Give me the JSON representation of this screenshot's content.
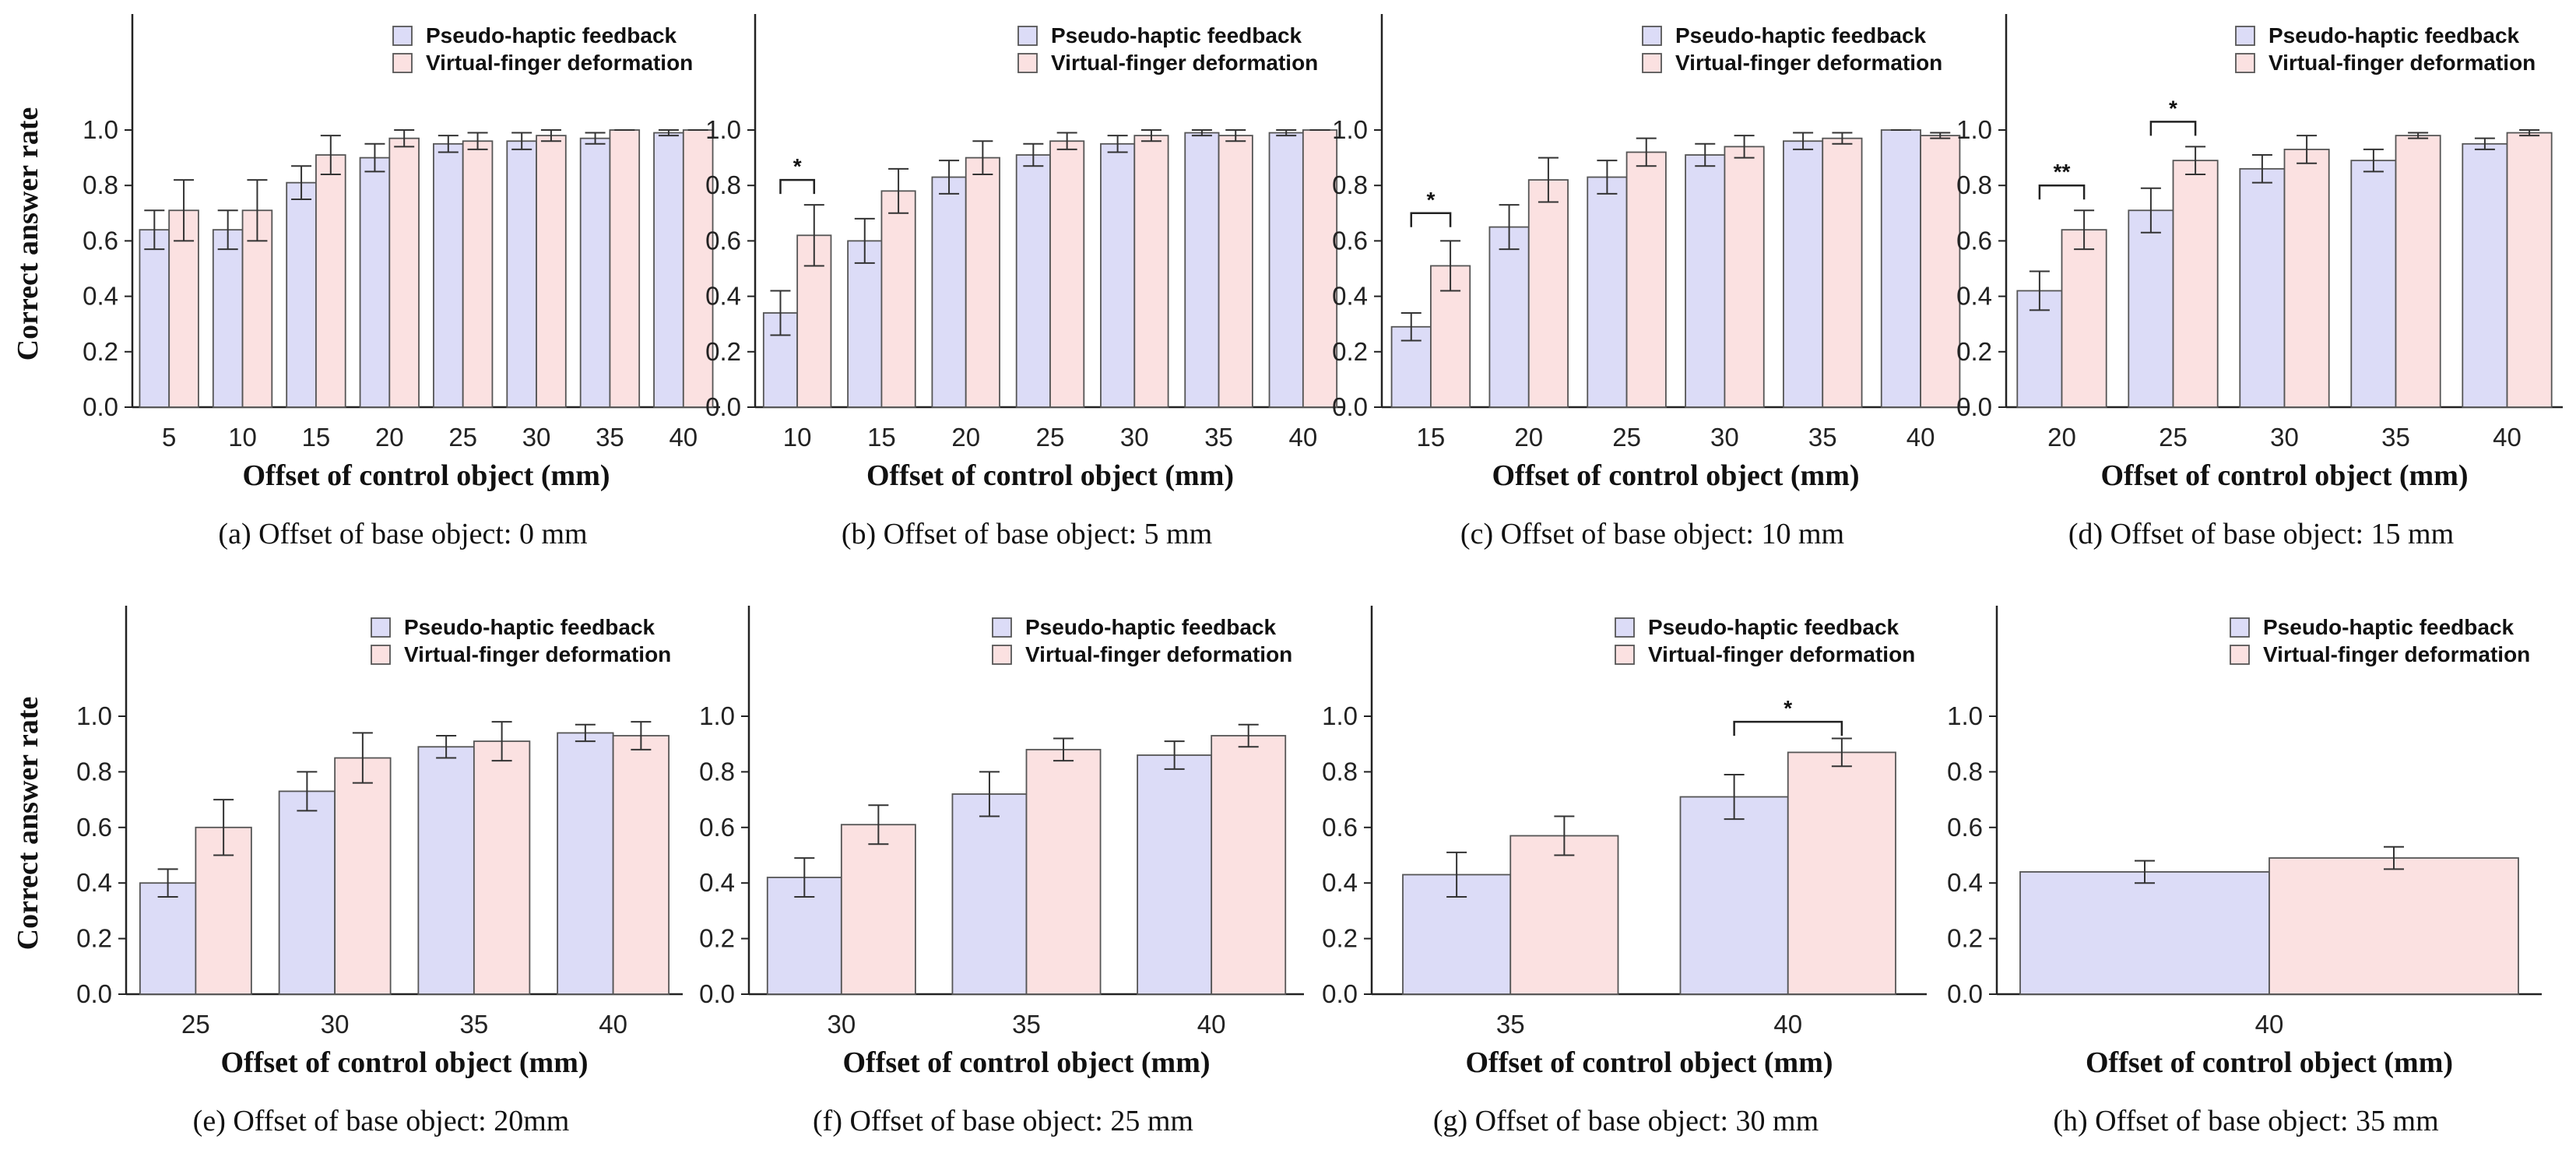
{
  "colors": {
    "pseudo_haptic": "#dcdcf7",
    "virtual_finger": "#fbe1e1",
    "bar_edge": "#555555",
    "axis": "#222222"
  },
  "legend": {
    "series_1": "Pseudo-haptic feedback",
    "series_2": "Virtual-finger deformation"
  },
  "ylabel": "Correct answer rate",
  "xlabel": "Offset of control object (mm)",
  "y_ticks": [
    "0.0",
    "0.2",
    "0.4",
    "0.6",
    "0.8",
    "1.0"
  ],
  "chart_data": [
    {
      "type": "bar",
      "caption": "(a) Offset of base object: 0 mm",
      "categories": [
        "5",
        "10",
        "15",
        "20",
        "25",
        "30",
        "35",
        "40"
      ],
      "ylim": [
        0,
        1.2
      ],
      "series": [
        {
          "name": "Pseudo-haptic feedback",
          "values": [
            0.64,
            0.64,
            0.81,
            0.9,
            0.95,
            0.96,
            0.97,
            0.99
          ],
          "errors": [
            0.07,
            0.07,
            0.06,
            0.05,
            0.03,
            0.03,
            0.02,
            0.01
          ]
        },
        {
          "name": "Virtual-finger deformation",
          "values": [
            0.71,
            0.71,
            0.91,
            0.97,
            0.96,
            0.98,
            1.0,
            1.0
          ],
          "errors": [
            0.11,
            0.11,
            0.07,
            0.03,
            0.03,
            0.02,
            0.0,
            0.0
          ]
        }
      ],
      "significance": []
    },
    {
      "type": "bar",
      "caption": "(b) Offset of base object: 5 mm",
      "categories": [
        "10",
        "15",
        "20",
        "25",
        "30",
        "35",
        "40"
      ],
      "ylim": [
        0,
        1.2
      ],
      "series": [
        {
          "name": "Pseudo-haptic feedback",
          "values": [
            0.34,
            0.6,
            0.83,
            0.91,
            0.95,
            0.99,
            0.99
          ],
          "errors": [
            0.08,
            0.08,
            0.06,
            0.04,
            0.03,
            0.01,
            0.01
          ]
        },
        {
          "name": "Virtual-finger deformation",
          "values": [
            0.62,
            0.78,
            0.9,
            0.96,
            0.98,
            0.98,
            1.0
          ],
          "errors": [
            0.11,
            0.08,
            0.06,
            0.03,
            0.02,
            0.02,
            0.0
          ]
        }
      ],
      "significance": [
        {
          "category_index": 0,
          "label": "*",
          "y": 0.82
        }
      ]
    },
    {
      "type": "bar",
      "caption": "(c) Offset of base object: 10 mm",
      "categories": [
        "15",
        "20",
        "25",
        "30",
        "35",
        "40"
      ],
      "ylim": [
        0,
        1.2
      ],
      "series": [
        {
          "name": "Pseudo-haptic feedback",
          "values": [
            0.29,
            0.65,
            0.83,
            0.91,
            0.96,
            1.0
          ],
          "errors": [
            0.05,
            0.08,
            0.06,
            0.04,
            0.03,
            0.0
          ]
        },
        {
          "name": "Virtual-finger deformation",
          "values": [
            0.51,
            0.82,
            0.92,
            0.94,
            0.97,
            0.98
          ],
          "errors": [
            0.09,
            0.08,
            0.05,
            0.04,
            0.02,
            0.01
          ]
        }
      ],
      "significance": [
        {
          "category_index": 0,
          "label": "*",
          "y": 0.7
        }
      ]
    },
    {
      "type": "bar",
      "caption": "(d) Offset of base object: 15 mm",
      "categories": [
        "20",
        "25",
        "30",
        "35",
        "40"
      ],
      "ylim": [
        0,
        1.2
      ],
      "series": [
        {
          "name": "Pseudo-haptic feedback",
          "values": [
            0.42,
            0.71,
            0.86,
            0.89,
            0.95
          ],
          "errors": [
            0.07,
            0.08,
            0.05,
            0.04,
            0.02
          ]
        },
        {
          "name": "Virtual-finger deformation",
          "values": [
            0.64,
            0.89,
            0.93,
            0.98,
            0.99
          ],
          "errors": [
            0.07,
            0.05,
            0.05,
            0.01,
            0.01
          ]
        }
      ],
      "significance": [
        {
          "category_index": 0,
          "label": "**",
          "y": 0.8
        },
        {
          "category_index": 1,
          "label": "*",
          "y": 1.03
        }
      ]
    },
    {
      "type": "bar",
      "caption": "(e) Offset of base object: 20mm",
      "categories": [
        "25",
        "30",
        "35",
        "40"
      ],
      "ylim": [
        0,
        1.2
      ],
      "series": [
        {
          "name": "Pseudo-haptic feedback",
          "values": [
            0.4,
            0.73,
            0.89,
            0.94
          ],
          "errors": [
            0.05,
            0.07,
            0.04,
            0.03
          ]
        },
        {
          "name": "Virtual-finger deformation",
          "values": [
            0.6,
            0.85,
            0.91,
            0.93
          ],
          "errors": [
            0.1,
            0.09,
            0.07,
            0.05
          ]
        }
      ],
      "significance": []
    },
    {
      "type": "bar",
      "caption": "(f) Offset of base object: 25 mm",
      "categories": [
        "30",
        "35",
        "40"
      ],
      "ylim": [
        0,
        1.2
      ],
      "series": [
        {
          "name": "Pseudo-haptic feedback",
          "values": [
            0.42,
            0.72,
            0.86
          ],
          "errors": [
            0.07,
            0.08,
            0.05
          ]
        },
        {
          "name": "Virtual-finger deformation",
          "values": [
            0.61,
            0.88,
            0.93
          ],
          "errors": [
            0.07,
            0.04,
            0.04
          ]
        }
      ],
      "significance": []
    },
    {
      "type": "bar",
      "caption": "(g) Offset of base object: 30 mm",
      "categories": [
        "35",
        "40"
      ],
      "ylim": [
        0,
        1.2
      ],
      "series": [
        {
          "name": "Pseudo-haptic feedback",
          "values": [
            0.43,
            0.71
          ],
          "errors": [
            0.08,
            0.08
          ]
        },
        {
          "name": "Virtual-finger deformation",
          "values": [
            0.57,
            0.87
          ],
          "errors": [
            0.07,
            0.05
          ]
        }
      ],
      "significance": [
        {
          "category_index": 1,
          "label": "*",
          "y": 0.98
        }
      ]
    },
    {
      "type": "bar",
      "caption": "(h) Offset of base object: 35 mm",
      "categories": [
        "40"
      ],
      "ylim": [
        0,
        1.2
      ],
      "series": [
        {
          "name": "Pseudo-haptic feedback",
          "values": [
            0.44
          ],
          "errors": [
            0.04
          ]
        },
        {
          "name": "Virtual-finger deformation",
          "values": [
            0.49
          ],
          "errors": [
            0.04
          ]
        }
      ],
      "significance": []
    }
  ]
}
